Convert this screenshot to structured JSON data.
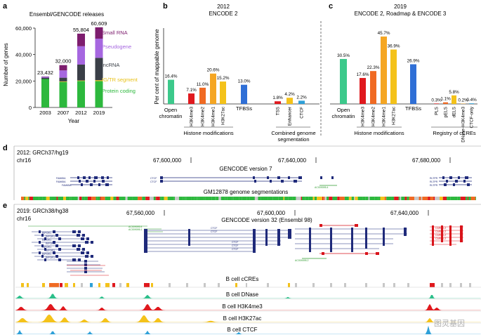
{
  "panels": {
    "a": {
      "letter": "a"
    },
    "b": {
      "letter": "b"
    },
    "c": {
      "letter": "c"
    },
    "d": {
      "letter": "d"
    },
    "e": {
      "letter": "e"
    }
  },
  "colors": {
    "protein_coding": "#2db83d",
    "ig_tr": "#e8c21a",
    "lncrna": "#3a3f47",
    "pseudogene": "#a667e0",
    "small_rna": "#7d1d6e",
    "open_chromatin": "#3cc98b",
    "h3k4me3": "#e0191e",
    "h3k4me2": "#f06a23",
    "h3k4me1": "#f5a623",
    "h3k27ac": "#f4c21a",
    "tfbs": "#2f6fd6",
    "tss": "#e0191e",
    "enhancer": "#f4c21a",
    "ctcf": "#2ea0d8",
    "dnase": "#2bbf8a",
    "gencode_blue": "#1f2a7a",
    "gencode_red": "#d9141b",
    "gencode_green": "#2e9a2e"
  },
  "chart_data": [
    {
      "type": "bar",
      "stacked": true,
      "title": "Ensembl/GENCODE releases",
      "xlabel": "Year",
      "ylabel": "Number of genes",
      "ylim": [
        0,
        60000
      ],
      "yticks": [
        "0",
        "20,000",
        "40,000",
        "60,000"
      ],
      "categories": [
        "2003",
        "2007",
        "2012",
        "2019"
      ],
      "totals": [
        "23,432",
        "32,000",
        "55,804",
        "60,609"
      ],
      "series": [
        {
          "name": "Protein coding",
          "color_key": "protein_coding",
          "values": [
            21500,
            19300,
            20000,
            19900
          ]
        },
        {
          "name": "IG/TR segment",
          "color_key": "ig_tr",
          "values": [
            0,
            400,
            400,
            700
          ]
        },
        {
          "name": "lncRNA",
          "color_key": "lncrna",
          "values": [
            1000,
            2800,
            12000,
            16900
          ]
        },
        {
          "name": "Pseudogene",
          "color_key": "pseudogene",
          "values": [
            700,
            5500,
            13900,
            14500
          ]
        },
        {
          "name": "Small RNA",
          "color_key": "small_rna",
          "values": [
            232,
            4000,
            9504,
            8609
          ]
        }
      ]
    },
    {
      "type": "bar",
      "title": "2012",
      "subtitle": "ENCODE 2",
      "ylabel": "Per cent of mappable genome",
      "ylim": [
        0,
        50
      ],
      "bars": [
        {
          "label": "Open chromatin",
          "value": 16.4,
          "text": "16.4%",
          "color_key": "open_chromatin"
        },
        {
          "label": "H3K4me3",
          "value": 7.1,
          "text": "7.1%",
          "color_key": "h3k4me3"
        },
        {
          "label": "H3K4me2",
          "value": 11.0,
          "text": "11.0%",
          "color_key": "h3k4me2"
        },
        {
          "label": "H3K4me1",
          "value": 20.6,
          "text": "20.6%",
          "color_key": "h3k4me1"
        },
        {
          "label": "H3K27ac",
          "value": 15.2,
          "text": "15.2%",
          "color_key": "h3k27ac"
        },
        {
          "label": "TFBSs",
          "value": 13.0,
          "text": "13.0%",
          "color_key": "tfbs"
        },
        {
          "label": "TSS",
          "value": 1.8,
          "text": "1.8%",
          "color_key": "tss"
        },
        {
          "label": "Enhancer",
          "value": 4.2,
          "text": "4.2%",
          "color_key": "enhancer"
        },
        {
          "label": "CTCF",
          "value": 2.2,
          "text": "2.2%",
          "color_key": "ctcf"
        }
      ],
      "groups": [
        "Histone modifications",
        "Combined genome segmentation"
      ]
    },
    {
      "type": "bar",
      "title": "2019",
      "subtitle": "ENCODE 2, Roadmap & ENCODE 3",
      "ylim": [
        0,
        50
      ],
      "bars": [
        {
          "label": "Open chromatin",
          "value": 30.5,
          "text": "30.5%",
          "color_key": "open_chromatin"
        },
        {
          "label": "H3K4me3",
          "value": 17.6,
          "text": "17.6%",
          "color_key": "h3k4me3"
        },
        {
          "label": "H3K4me2",
          "value": 22.3,
          "text": "22.3%",
          "color_key": "h3k4me2"
        },
        {
          "label": "H3K4me1",
          "value": 45.7,
          "text": "45.7%",
          "color_key": "h3k4me1"
        },
        {
          "label": "H3K27ac",
          "value": 36.9,
          "text": "36.9%",
          "color_key": "h3k27ac"
        },
        {
          "label": "TFBSs",
          "value": 26.9,
          "text": "26.9%",
          "color_key": "tfbs"
        },
        {
          "label": "PLS",
          "value": 0.3,
          "text": "0.3%",
          "color_key": "h3k4me3"
        },
        {
          "label": "pELS",
          "value": 1.1,
          "text": "1.1%",
          "color_key": "h3k4me2"
        },
        {
          "label": "dELS",
          "value": 5.8,
          "text": "5.8%",
          "color_key": "h3k27ac"
        },
        {
          "label": "DNase–H3K4me3",
          "value": 0.2,
          "text": "0.2%",
          "color_key": "h3k4me1"
        },
        {
          "label": "CTCF-only",
          "value": 0.4,
          "text": "0.4%",
          "color_key": "ctcf"
        }
      ],
      "groups": [
        "Histone modifications",
        "Registry of cCREs"
      ]
    }
  ],
  "browser_d": {
    "assembly": "2012: GRCh37/hg19",
    "chrom": "chr16",
    "coords": [
      "67,600,000",
      "67,640,000",
      "67,680,000"
    ],
    "gencode_label": "GENCODE version 7",
    "segmentation_label": "GM12878 genome segmentations",
    "gene_labels": [
      "FAM65A",
      "FAM65A",
      "FAM65A",
      "CTCF",
      "CTCF",
      "AC009095.4",
      "RLTPR",
      "RLTPR",
      "RLTPR"
    ]
  },
  "browser_e": {
    "assembly": "2019: GRCh38/hg38",
    "chrom": "chr16",
    "coords": [
      "67,560,000",
      "67,600,000",
      "67,640,000"
    ],
    "gencode_label": "GENCODE version 32 (Ensembl 98)",
    "gene_labels": [
      "RIPOR1",
      "RIPOR1",
      "RIPOR1",
      "RIPOR1",
      "RIPOR1",
      "RIPOR1",
      "RIPOR1",
      "RIPOR1",
      "AC009095.4",
      "AC009095.1",
      "CTCF",
      "CTCF",
      "CTCF",
      "CTCF",
      "CTCF",
      "CARMIL2",
      "CARMIL2",
      "CARMIL2",
      "CARMIL2",
      "AC009095.2"
    ],
    "tracks": [
      "B cell cCREs",
      "B cell DNase",
      "B cell H3K4me3",
      "B cell H3K27ac",
      "B cell CTCF"
    ]
  },
  "watermark": "图灵基因"
}
